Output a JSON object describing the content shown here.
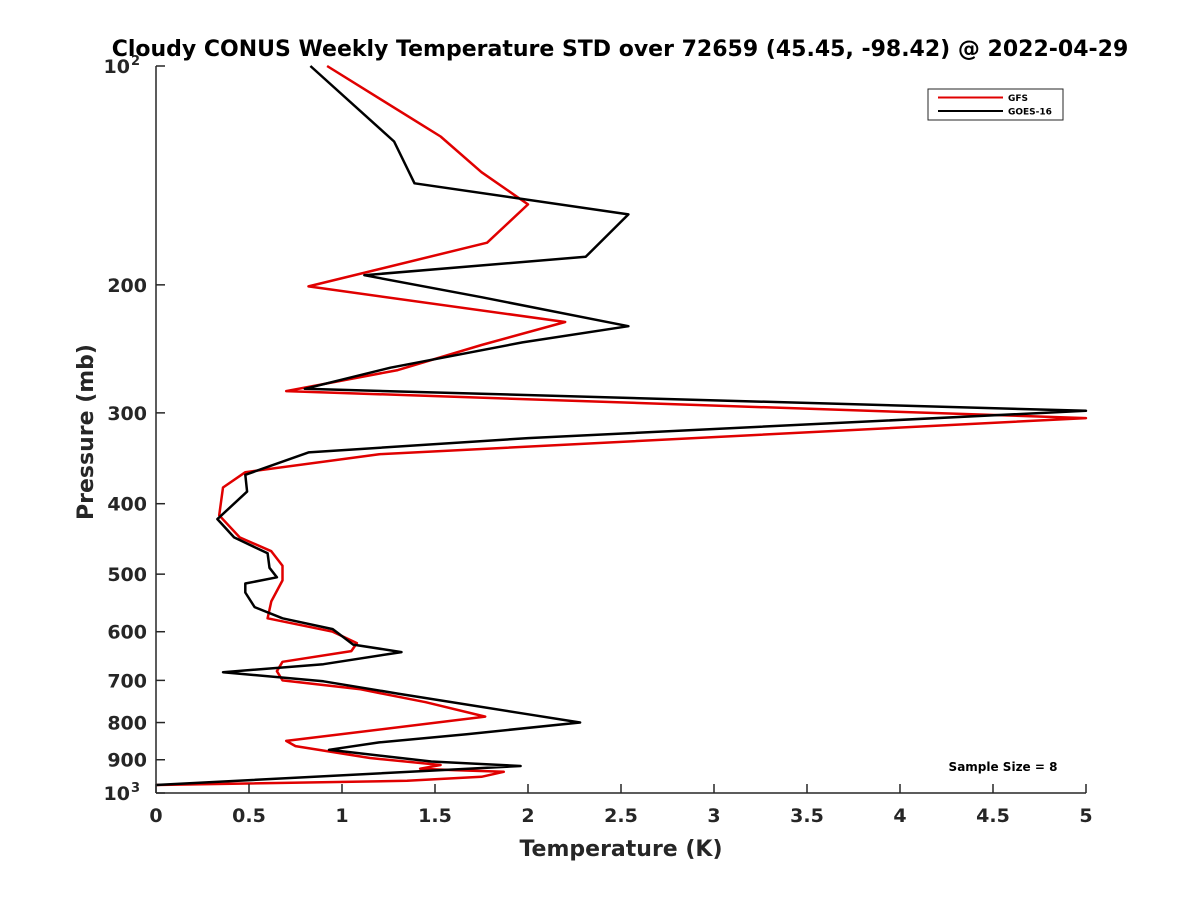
{
  "chart_data": {
    "type": "line",
    "title": "Cloudy CONUS Weekly Temperature STD over 72659 (45.45, -98.42) @ 2022-04-29",
    "xlabel": "Temperature (K)",
    "ylabel": "Pressure (mb)",
    "xlim": [
      0,
      5
    ],
    "ylim": [
      100,
      1000
    ],
    "yscale": "log",
    "y_reversed": true,
    "grid": false,
    "legend_position": "top-right",
    "xticks": [
      {
        "value": 0,
        "label": "0"
      },
      {
        "value": 0.5,
        "label": "0.5"
      },
      {
        "value": 1,
        "label": "1"
      },
      {
        "value": 1.5,
        "label": "1.5"
      },
      {
        "value": 2,
        "label": "2"
      },
      {
        "value": 2.5,
        "label": "2.5"
      },
      {
        "value": 3,
        "label": "3"
      },
      {
        "value": 3.5,
        "label": "3.5"
      },
      {
        "value": 4,
        "label": "4"
      },
      {
        "value": 4.5,
        "label": "4.5"
      },
      {
        "value": 5,
        "label": "5"
      }
    ],
    "yticks": [
      {
        "value": 100,
        "base": "10",
        "sup": "2"
      },
      {
        "value": 200,
        "base": "200",
        "sup": ""
      },
      {
        "value": 300,
        "base": "300",
        "sup": ""
      },
      {
        "value": 400,
        "base": "400",
        "sup": ""
      },
      {
        "value": 500,
        "base": "500",
        "sup": ""
      },
      {
        "value": 600,
        "base": "600",
        "sup": ""
      },
      {
        "value": 700,
        "base": "700",
        "sup": ""
      },
      {
        "value": 800,
        "base": "800",
        "sup": ""
      },
      {
        "value": 900,
        "base": "900",
        "sup": ""
      },
      {
        "value": 1000,
        "base": "10",
        "sup": "3"
      }
    ],
    "series": [
      {
        "name": "GFS",
        "color": "#e00000",
        "points": [
          [
            0.92,
            100
          ],
          [
            1.53,
            125
          ],
          [
            1.75,
            140
          ],
          [
            2.0,
            155
          ],
          [
            1.78,
            175
          ],
          [
            0.82,
            201
          ],
          [
            2.2,
            225
          ],
          [
            1.75,
            242
          ],
          [
            1.3,
            262
          ],
          [
            0.7,
            280
          ],
          [
            5.0,
            305
          ],
          [
            1.2,
            342
          ],
          [
            0.48,
            362
          ],
          [
            0.36,
            380
          ],
          [
            0.34,
            415
          ],
          [
            0.45,
            445
          ],
          [
            0.62,
            465
          ],
          [
            0.68,
            487
          ],
          [
            0.68,
            510
          ],
          [
            0.62,
            545
          ],
          [
            0.6,
            575
          ],
          [
            0.95,
            600
          ],
          [
            1.08,
            622
          ],
          [
            1.05,
            638
          ],
          [
            0.68,
            660
          ],
          [
            0.65,
            680
          ],
          [
            0.68,
            700
          ],
          [
            1.1,
            720
          ],
          [
            1.45,
            750
          ],
          [
            1.77,
            785
          ],
          [
            0.7,
            848
          ],
          [
            0.75,
            862
          ],
          [
            1.15,
            895
          ],
          [
            1.53,
            915
          ],
          [
            1.42,
            926
          ],
          [
            1.6,
            930
          ],
          [
            1.87,
            935
          ],
          [
            1.75,
            950
          ],
          [
            1.35,
            962
          ],
          [
            0.0,
            975
          ]
        ]
      },
      {
        "name": "GOES-16",
        "color": "#000000",
        "points": [
          [
            0.83,
            100
          ],
          [
            1.28,
            127
          ],
          [
            1.39,
            145
          ],
          [
            2.54,
            160
          ],
          [
            2.31,
            183
          ],
          [
            1.12,
            194
          ],
          [
            1.75,
            208
          ],
          [
            2.54,
            228
          ],
          [
            1.97,
            240
          ],
          [
            1.26,
            260
          ],
          [
            0.8,
            278
          ],
          [
            5.0,
            298
          ],
          [
            2.0,
            325
          ],
          [
            0.82,
            340
          ],
          [
            0.48,
            365
          ],
          [
            0.49,
            385
          ],
          [
            0.33,
            420
          ],
          [
            0.42,
            445
          ],
          [
            0.6,
            468
          ],
          [
            0.61,
            490
          ],
          [
            0.65,
            505
          ],
          [
            0.48,
            515
          ],
          [
            0.48,
            530
          ],
          [
            0.53,
            555
          ],
          [
            0.68,
            575
          ],
          [
            0.95,
            595
          ],
          [
            1.06,
            625
          ],
          [
            1.32,
            640
          ],
          [
            0.9,
            665
          ],
          [
            0.36,
            682
          ],
          [
            0.9,
            702
          ],
          [
            1.3,
            730
          ],
          [
            1.98,
            778
          ],
          [
            2.28,
            800
          ],
          [
            1.67,
            830
          ],
          [
            1.2,
            852
          ],
          [
            0.93,
            872
          ],
          [
            1.48,
            905
          ],
          [
            1.96,
            918
          ],
          [
            0.0,
            975
          ]
        ]
      }
    ],
    "annotations": [
      {
        "text": "Sample Size = 8"
      }
    ]
  }
}
